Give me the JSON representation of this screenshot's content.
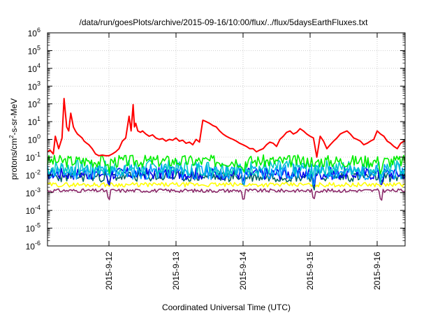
{
  "chart_data": {
    "type": "line",
    "title": "/data/run/goesPlots/archive/2015-09-16/10:00/flux/../flux/5daysEarthFluxes.txt",
    "xlabel": "Coordinated Universal Time (UTC)",
    "ylabel_parts": {
      "before": "protons/cm",
      "sup": "2",
      "after": "-s-sr-MeV"
    },
    "y_scale": "log",
    "ylim_exp": [
      -6,
      6
    ],
    "y_tick_exponents": [
      -6,
      -5,
      -4,
      -3,
      -2,
      -1,
      0,
      1,
      2,
      3,
      4,
      5,
      6
    ],
    "y_tick_base": "10",
    "x_range_days": [
      "2015-09-11 02:00",
      "2015-09-16 10:00"
    ],
    "x_ticks": [
      "2015-9-12",
      "2015-9-13",
      "2015-9-14",
      "2015-9-15",
      "2015-9-16"
    ],
    "grid": true,
    "series": [
      {
        "color": "#ff0000",
        "x": [
          11.083,
          11.12,
          11.17,
          11.2,
          11.25,
          11.3,
          11.33,
          11.37,
          11.4,
          11.43,
          11.47,
          11.5,
          11.53,
          11.57,
          11.6,
          11.63,
          11.67,
          11.7,
          11.75,
          11.8,
          11.85,
          11.9,
          11.95,
          12.0,
          12.05,
          12.1,
          12.15,
          12.2,
          12.25,
          12.3,
          12.33,
          12.36,
          12.38,
          12.4,
          12.43,
          12.47,
          12.5,
          12.55,
          12.6,
          12.65,
          12.7,
          12.75,
          12.8,
          12.85,
          12.9,
          12.95,
          13.0,
          13.05,
          13.1,
          13.15,
          13.2,
          13.25,
          13.3,
          13.35,
          13.4,
          13.45,
          13.5,
          13.55,
          13.6,
          13.65,
          13.7,
          13.75,
          13.8,
          13.85,
          13.9,
          13.95,
          14.0,
          14.05,
          14.1,
          14.15,
          14.2,
          14.25,
          14.3,
          14.35,
          14.4,
          14.45,
          14.5,
          14.55,
          14.6,
          14.65,
          14.7,
          14.75,
          14.8,
          14.85,
          14.9,
          14.95,
          15.0,
          15.05,
          15.1,
          15.15,
          15.2,
          15.25,
          15.3,
          15.35,
          15.4,
          15.45,
          15.5,
          15.55,
          15.6,
          15.65,
          15.7,
          15.75,
          15.8,
          15.85,
          15.9,
          15.95,
          16.0,
          16.05,
          16.1,
          16.15,
          16.2,
          16.25,
          16.3,
          16.35,
          16.4,
          16.417
        ],
        "values": [
          0.2,
          0.25,
          0.15,
          1.5,
          0.3,
          1.2,
          200,
          5,
          3,
          30,
          5,
          3,
          2,
          1.5,
          1.2,
          0.8,
          0.6,
          0.5,
          0.3,
          0.15,
          0.12,
          0.13,
          0.12,
          0.12,
          0.15,
          0.2,
          0.3,
          0.8,
          1.2,
          20,
          3,
          90,
          5,
          8,
          3,
          2.5,
          3,
          2,
          1.5,
          1.8,
          1.2,
          1.0,
          1.1,
          0.8,
          1.0,
          0.9,
          1.2,
          0.8,
          0.9,
          0.6,
          0.7,
          0.5,
          1.0,
          0.7,
          12,
          10,
          8,
          6,
          5,
          3,
          2,
          1.5,
          1.2,
          1.0,
          0.8,
          0.6,
          0.5,
          0.4,
          0.3,
          0.3,
          0.2,
          0.25,
          0.3,
          0.5,
          0.7,
          0.6,
          0.4,
          1.0,
          1.5,
          2.5,
          3,
          2,
          2.5,
          4,
          3,
          2,
          1.5,
          1.2,
          0.1,
          1.5,
          0.8,
          0.3,
          0.5,
          0.8,
          1.2,
          2,
          2.5,
          3,
          2,
          1.2,
          1.0,
          0.8,
          0.5,
          0.6,
          0.8,
          1.0,
          3,
          2,
          1.5,
          0.8,
          0.6,
          0.4,
          0.3,
          0.6,
          0.8,
          0.8
        ]
      },
      {
        "color": "#00ee00",
        "base": 0.06,
        "spread": 0.7,
        "dips": true,
        "seed": 3
      },
      {
        "color": "#00c8c8",
        "base": 0.025,
        "spread": 0.9,
        "dips": true,
        "seed": 7
      },
      {
        "color": "#00a0ff",
        "base": 0.015,
        "spread": 0.9,
        "dips": true,
        "seed": 11
      },
      {
        "color": "#0000ee",
        "base": 0.012,
        "spread": 0.7,
        "dips": true,
        "seed": 17
      },
      {
        "color": "#006464",
        "base": 0.008,
        "spread": 0.6,
        "dips": true,
        "seed": 23
      },
      {
        "color": "#ffff00",
        "base": 0.0028,
        "spread": 0.25,
        "dips": false,
        "seed": 29
      },
      {
        "color": "#8b2a6a",
        "base": 0.0013,
        "spread": 0.2,
        "dips": true,
        "seed": 31
      }
    ]
  }
}
